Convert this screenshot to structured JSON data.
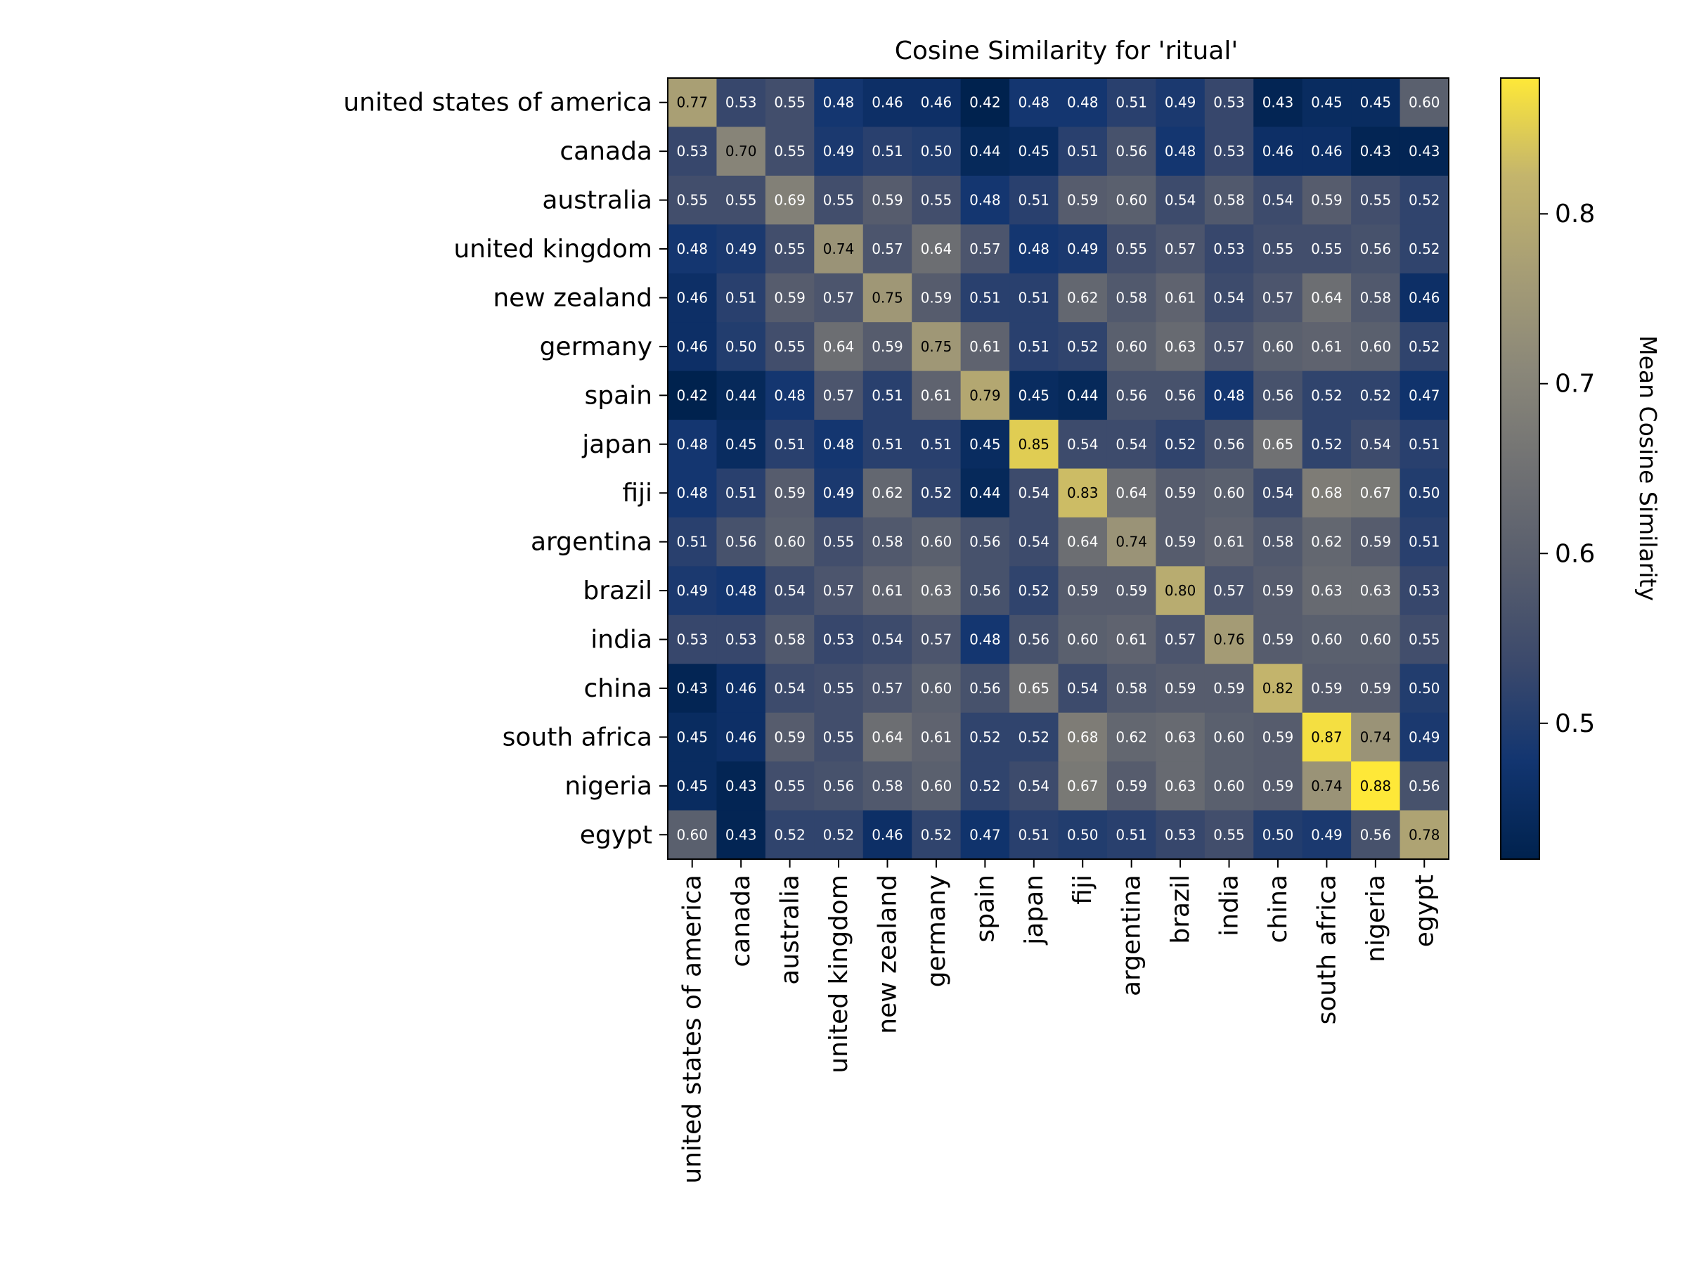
{
  "chart_data": {
    "type": "heatmap",
    "title": "Cosine Similarity for 'ritual'",
    "categories": [
      "united states of america",
      "canada",
      "australia",
      "united kingdom",
      "new zealand",
      "germany",
      "spain",
      "japan",
      "fiji",
      "argentina",
      "brazil",
      "india",
      "china",
      "south africa",
      "nigeria",
      "egypt"
    ],
    "matrix": [
      [
        0.77,
        0.53,
        0.55,
        0.48,
        0.46,
        0.46,
        0.42,
        0.48,
        0.48,
        0.51,
        0.49,
        0.53,
        0.43,
        0.45,
        0.45,
        0.6
      ],
      [
        0.53,
        0.7,
        0.55,
        0.49,
        0.51,
        0.5,
        0.44,
        0.45,
        0.51,
        0.56,
        0.48,
        0.53,
        0.46,
        0.46,
        0.43,
        0.43
      ],
      [
        0.55,
        0.55,
        0.69,
        0.55,
        0.59,
        0.55,
        0.48,
        0.51,
        0.59,
        0.6,
        0.54,
        0.58,
        0.54,
        0.59,
        0.55,
        0.52
      ],
      [
        0.48,
        0.49,
        0.55,
        0.74,
        0.57,
        0.64,
        0.57,
        0.48,
        0.49,
        0.55,
        0.57,
        0.53,
        0.55,
        0.55,
        0.56,
        0.52
      ],
      [
        0.46,
        0.51,
        0.59,
        0.57,
        0.75,
        0.59,
        0.51,
        0.51,
        0.62,
        0.58,
        0.61,
        0.54,
        0.57,
        0.64,
        0.58,
        0.46
      ],
      [
        0.46,
        0.5,
        0.55,
        0.64,
        0.59,
        0.75,
        0.61,
        0.51,
        0.52,
        0.6,
        0.63,
        0.57,
        0.6,
        0.61,
        0.6,
        0.52
      ],
      [
        0.42,
        0.44,
        0.48,
        0.57,
        0.51,
        0.61,
        0.79,
        0.45,
        0.44,
        0.56,
        0.56,
        0.48,
        0.56,
        0.52,
        0.52,
        0.47
      ],
      [
        0.48,
        0.45,
        0.51,
        0.48,
        0.51,
        0.51,
        0.45,
        0.85,
        0.54,
        0.54,
        0.52,
        0.56,
        0.65,
        0.52,
        0.54,
        0.51
      ],
      [
        0.48,
        0.51,
        0.59,
        0.49,
        0.62,
        0.52,
        0.44,
        0.54,
        0.83,
        0.64,
        0.59,
        0.6,
        0.54,
        0.68,
        0.67,
        0.5
      ],
      [
        0.51,
        0.56,
        0.6,
        0.55,
        0.58,
        0.6,
        0.56,
        0.54,
        0.64,
        0.74,
        0.59,
        0.61,
        0.58,
        0.62,
        0.59,
        0.51
      ],
      [
        0.49,
        0.48,
        0.54,
        0.57,
        0.61,
        0.63,
        0.56,
        0.52,
        0.59,
        0.59,
        0.8,
        0.57,
        0.59,
        0.63,
        0.63,
        0.53
      ],
      [
        0.53,
        0.53,
        0.58,
        0.53,
        0.54,
        0.57,
        0.48,
        0.56,
        0.6,
        0.61,
        0.57,
        0.76,
        0.59,
        0.6,
        0.6,
        0.55
      ],
      [
        0.43,
        0.46,
        0.54,
        0.55,
        0.57,
        0.6,
        0.56,
        0.65,
        0.54,
        0.58,
        0.59,
        0.59,
        0.82,
        0.59,
        0.59,
        0.5
      ],
      [
        0.45,
        0.46,
        0.59,
        0.55,
        0.64,
        0.61,
        0.52,
        0.52,
        0.68,
        0.62,
        0.63,
        0.6,
        0.59,
        0.87,
        0.74,
        0.49
      ],
      [
        0.45,
        0.43,
        0.55,
        0.56,
        0.58,
        0.6,
        0.52,
        0.54,
        0.67,
        0.59,
        0.63,
        0.6,
        0.59,
        0.74,
        0.88,
        0.56
      ],
      [
        0.6,
        0.43,
        0.52,
        0.52,
        0.46,
        0.52,
        0.47,
        0.51,
        0.5,
        0.51,
        0.53,
        0.55,
        0.5,
        0.49,
        0.56,
        0.78
      ]
    ],
    "value_format": "2 decimals",
    "colormap": "cividis",
    "color_range": [
      0.42,
      0.88
    ],
    "colorbar": {
      "label": "Mean Cosine Similarity",
      "ticks": [
        0.5,
        0.6,
        0.7,
        0.8
      ],
      "tick_labels": [
        "0.5",
        "0.6",
        "0.7",
        "0.8"
      ]
    },
    "colors": {
      "low": "#00224e",
      "mid": "#7c7b78",
      "high": "#fee838",
      "dark_text": "#000000",
      "light_text": "#ffffff"
    },
    "grid": false
  }
}
